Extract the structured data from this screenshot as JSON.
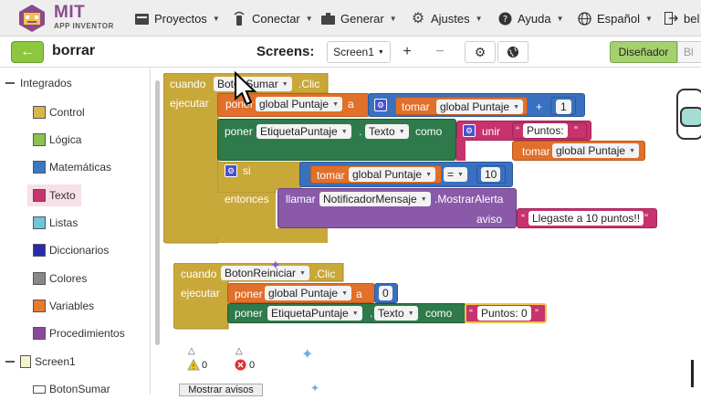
{
  "app": {
    "logo_mit": "MIT",
    "logo_sub": "APP INVENTOR",
    "project_name": "borrar"
  },
  "nav": {
    "proyectos": "Proyectos",
    "conectar": "Conectar",
    "generar": "Generar",
    "ajustes": "Ajustes",
    "ayuda": "Ayuda",
    "idioma": "Español",
    "usuario": "bel"
  },
  "toolbar": {
    "screens_label": "Screens:",
    "screen_selected": "Screen1",
    "add_symbol": "+",
    "remove_symbol": "−",
    "designer": "Diseñador",
    "blocks": "Bl"
  },
  "sidebar": {
    "section_builtin": "Integrados",
    "items": [
      {
        "label": "Control",
        "color": "#d9b64a"
      },
      {
        "label": "Lógica",
        "color": "#8cc24d"
      },
      {
        "label": "Matemáticas",
        "color": "#3a78c4"
      },
      {
        "label": "Texto",
        "color": "#c8326e"
      },
      {
        "label": "Listas",
        "color": "#6fc5d9"
      },
      {
        "label": "Diccionarios",
        "color": "#2a2aaa"
      },
      {
        "label": "Colores",
        "color": "#888888"
      },
      {
        "label": "Variables",
        "color": "#e87a2a"
      },
      {
        "label": "Procedimientos",
        "color": "#8a4a9a"
      }
    ],
    "screen": "Screen1",
    "components": [
      "BotonSumar"
    ]
  },
  "blocks": {
    "event1": {
      "cuando": "cuando",
      "component": "BotonSumar",
      "event": ".Clic",
      "ejecutar": "ejecutar",
      "set1_poner": "poner",
      "set1_var": "global Puntaje",
      "set1_a": "a",
      "get1_tomar": "tomar",
      "get1_var": "global Puntaje",
      "plus": "+",
      "num1": "1",
      "set2_poner": "poner",
      "set2_comp": "EtiquetaPuntaje",
      "set2_prop": "Texto",
      "set2_como": "como",
      "unir": "unir",
      "str_puntos": "Puntos:",
      "get2_tomar": "tomar",
      "get2_var": "global Puntaje",
      "si": "si",
      "get3_tomar": "tomar",
      "get3_var": "global Puntaje",
      "eq": "=",
      "num10": "10",
      "entonces": "entonces",
      "llamar": "llamar",
      "notifier": "NotificadorMensaje",
      "method": ".MostrarAlerta",
      "aviso": "aviso",
      "msg": "Llegaste a 10 puntos!!"
    },
    "event2": {
      "cuando": "cuando",
      "component": "BotonReiniciar",
      "event": ".Clic",
      "ejecutar": "ejecutar",
      "set1_poner": "poner",
      "set1_var": "global Puntaje",
      "set1_a": "a",
      "num0": "0",
      "set2_poner": "poner",
      "set2_comp": "EtiquetaPuntaje",
      "set2_prop": "Texto",
      "set2_como": "como",
      "str": "Puntos: 0"
    }
  },
  "warnings": {
    "warn_count": "0",
    "error_count": "0",
    "show_label": "Mostrar avisos"
  },
  "colors": {
    "control": "#c9a83a",
    "variables": "#e0702a",
    "math": "#3a70c0",
    "text": "#c8326e",
    "component_set": "#2e7a4a",
    "component_call": "#8a5aa8",
    "accent_green": "#8dc63f"
  }
}
